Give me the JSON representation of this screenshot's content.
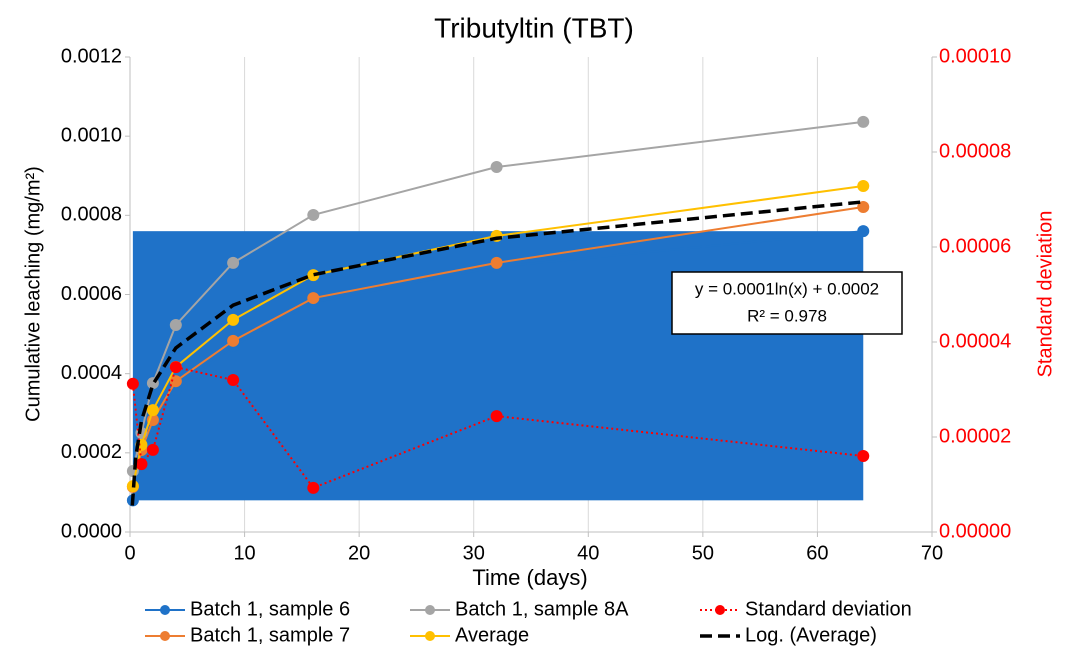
{
  "chart_data": {
    "type": "line",
    "title": "Tributyltin (TBT)",
    "xlabel": "Time (days)",
    "ylabel": "Cumulative leaching (mg/m²)",
    "y2label": "Standard deviation",
    "x": [
      0.25,
      1,
      2,
      4,
      9,
      16,
      32,
      64
    ],
    "xlim": [
      0,
      70
    ],
    "xticks": [
      0,
      10,
      20,
      30,
      40,
      50,
      60,
      70
    ],
    "ylim": [
      0,
      0.0012
    ],
    "yticks": [
      {
        "value": 0,
        "label": "0.0000"
      },
      {
        "value": 0.0002,
        "label": "0.0002"
      },
      {
        "value": 0.0004,
        "label": "0.0004"
      },
      {
        "value": 0.0006,
        "label": "0.0006"
      },
      {
        "value": 0.0008,
        "label": "0.0008"
      },
      {
        "value": 0.001,
        "label": "0.0010"
      },
      {
        "value": 0.0012,
        "label": "0.0012"
      }
    ],
    "y2lim": [
      0,
      0.0001
    ],
    "y2ticks": [
      {
        "value": 0,
        "label": "0.00000"
      },
      {
        "value": 2e-05,
        "label": "0.00002"
      },
      {
        "value": 4e-05,
        "label": "0.00004"
      },
      {
        "value": 6e-05,
        "label": "0.00006"
      },
      {
        "value": 8e-05,
        "label": "0.00008"
      },
      {
        "value": 0.0001,
        "label": "0.00010"
      }
    ],
    "grid": true,
    "series": [
      {
        "name": "Batch 1, sample 6",
        "color": "#1f72c8",
        "fill": true,
        "values": [
          8e-05,
          0.00019,
          0.00027,
          0.00036,
          0.00047,
          0.00058,
          0.00067,
          0.00076
        ]
      },
      {
        "name": "Batch 1, sample 7",
        "color": "#ed7d31",
        "values": [
          0.000114,
          0.000207,
          0.000283,
          0.000381,
          0.000483,
          0.000591,
          0.00068,
          0.000821
        ]
      },
      {
        "name": "Batch 1, sample 8A",
        "color": "#a5a5a5",
        "values": [
          0.000154,
          0.00025,
          0.000376,
          0.000523,
          0.00068,
          0.000801,
          0.000922,
          0.001036
        ]
      },
      {
        "name": "Average",
        "color": "#ffc000",
        "values": [
          0.000116,
          0.00022,
          0.000308,
          0.000417,
          0.000536,
          0.000649,
          0.000748,
          0.000874
        ]
      },
      {
        "name": "Standard deviation",
        "color": "#ff0000",
        "axis": "y2",
        "dotted": true,
        "values": [
          3.12e-05,
          1.43e-05,
          1.73e-05,
          3.47e-05,
          3.2e-05,
          9.3e-06,
          2.44e-05,
          1.6e-05
        ]
      }
    ],
    "trendline": {
      "name": "Log. (Average)",
      "color": "#000000",
      "x": [
        0.2,
        0.5,
        1,
        2,
        4,
        9,
        16,
        32,
        64
      ],
      "values": [
        6.7e-05,
        0.000189,
        0.000281,
        0.000373,
        0.000465,
        0.000573,
        0.00065,
        0.000742,
        0.000834
      ]
    },
    "annotation": [
      "y = 0.0001ln(x) + 0.0002",
      "R² = 0.978"
    ]
  }
}
